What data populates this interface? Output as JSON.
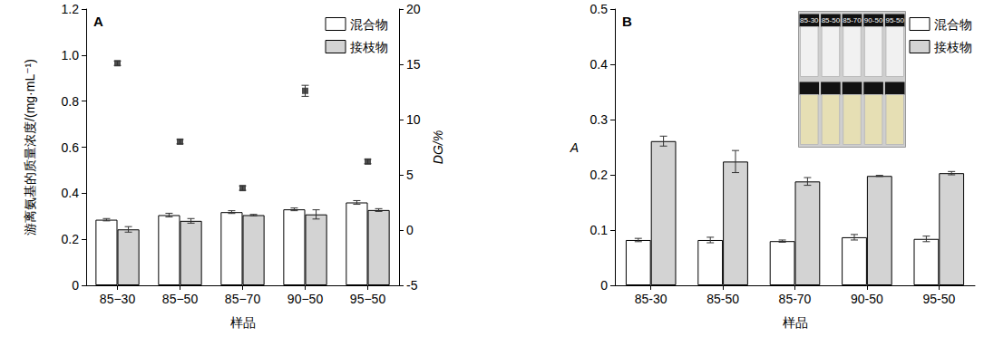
{
  "chart_data": [
    {
      "type": "bar",
      "title": "A",
      "categories": [
        "85−30",
        "85−50",
        "85−70",
        "90−50",
        "95−50"
      ],
      "xlabel": "样品",
      "ylabel": "游离氨基的质量浓度/(mg·mL⁻¹)",
      "y2label": "DG/%",
      "ylim": [
        0,
        1.2
      ],
      "yticks": [
        0,
        0.2,
        0.4,
        0.6,
        0.8,
        {
          "value": 1,
          "label": "1.0"
        },
        1.2
      ],
      "y2lim": [
        -5,
        20
      ],
      "y2ticks": [
        -5,
        0,
        5,
        10,
        15,
        20
      ],
      "legend": "upper right",
      "series": [
        {
          "name": "混合物",
          "color": "#ffffff",
          "values": [
            0.285,
            0.305,
            0.318,
            0.33,
            0.36
          ],
          "errors": [
            0.005,
            0.008,
            0.006,
            0.006,
            0.008
          ]
        },
        {
          "name": "接枝物",
          "color": "#d3d3d3",
          "values": [
            0.243,
            0.28,
            0.305,
            0.308,
            0.327
          ],
          "errors": [
            0.012,
            0.01,
            0.003,
            0.02,
            0.006
          ]
        },
        {
          "type": "scatter",
          "axis": "y2",
          "marker": "square",
          "color": "#222222",
          "values": [
            15.1,
            8.0,
            3.8,
            12.6,
            6.2
          ],
          "errors": [
            0.2,
            0.2,
            0.2,
            0.5,
            0.2
          ]
        }
      ]
    },
    {
      "type": "bar",
      "title": "B",
      "categories": [
        "85-30",
        "85-50",
        "85-70",
        "90-50",
        "95-50"
      ],
      "xlabel": "样品",
      "ylabel": "A",
      "ylim": [
        0,
        0.5
      ],
      "yticks": [
        0,
        0.1,
        0.2,
        0.3,
        0.4,
        0.5
      ],
      "legend": "upper right",
      "inset_labels": [
        "85-30",
        "85-50",
        "85-70",
        "90-50",
        "95-50"
      ],
      "series": [
        {
          "name": "混合物",
          "color": "#ffffff",
          "values": [
            0.082,
            0.082,
            0.08,
            0.087,
            0.084
          ],
          "errors": [
            0.003,
            0.005,
            0.002,
            0.005,
            0.005
          ]
        },
        {
          "name": "接枝物",
          "color": "#d3d3d3",
          "values": [
            0.261,
            0.224,
            0.188,
            0.198,
            0.203
          ],
          "errors": [
            0.009,
            0.02,
            0.007,
            0.001,
            0.003
          ]
        }
      ]
    }
  ]
}
